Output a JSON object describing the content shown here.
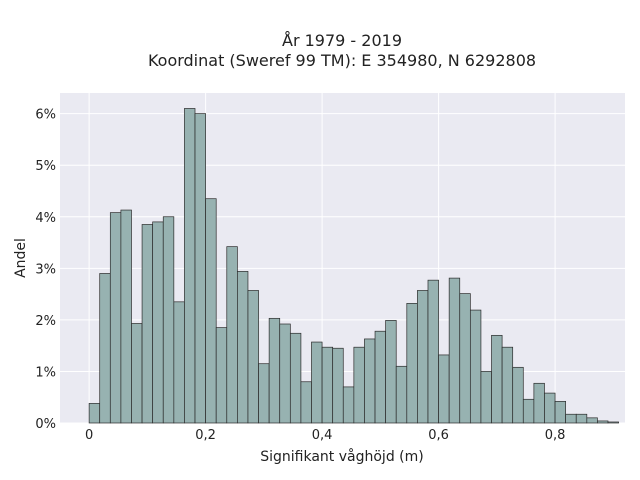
{
  "chart_data": {
    "type": "bar",
    "title": [
      "År 1979 - 2019",
      "Koordinat (Sweref 99 TM): E 354980, N 6292808"
    ],
    "xlabel": "Signifikant våghöjd (m)",
    "ylabel": "Andel",
    "bin_width": 0.01818,
    "x_start": 0.0,
    "xlim": [
      -0.05,
      0.92
    ],
    "ylim": [
      0,
      6.4
    ],
    "x_ticks": [
      0,
      0.2,
      0.4,
      0.6,
      0.8
    ],
    "x_tick_labels": [
      "0",
      "0,2",
      "0,4",
      "0,6",
      "0,8"
    ],
    "y_ticks": [
      0,
      1,
      2,
      3,
      4,
      5,
      6
    ],
    "y_tick_labels": [
      "0%",
      "1%",
      "2%",
      "3%",
      "4%",
      "5%",
      "6%"
    ],
    "grid": true,
    "values": [
      0.38,
      2.9,
      4.08,
      4.13,
      1.93,
      3.85,
      3.9,
      4.0,
      2.35,
      6.1,
      6.0,
      4.35,
      1.85,
      3.42,
      2.94,
      2.57,
      1.15,
      2.03,
      1.92,
      1.74,
      0.8,
      1.57,
      1.47,
      1.45,
      0.7,
      1.47,
      1.63,
      1.78,
      1.99,
      1.1,
      2.32,
      2.57,
      2.77,
      1.32,
      2.81,
      2.51,
      2.19,
      1.0,
      1.7,
      1.47,
      1.08,
      0.46,
      0.77,
      0.58,
      0.42,
      0.17,
      0.17,
      0.1,
      0.04,
      0.02
    ],
    "colors": {
      "bar_fill": "#97b2b1",
      "bar_edge": "#2b2b2b",
      "plot_bg": "#eaeaf2",
      "grid": "#ffffff"
    }
  }
}
